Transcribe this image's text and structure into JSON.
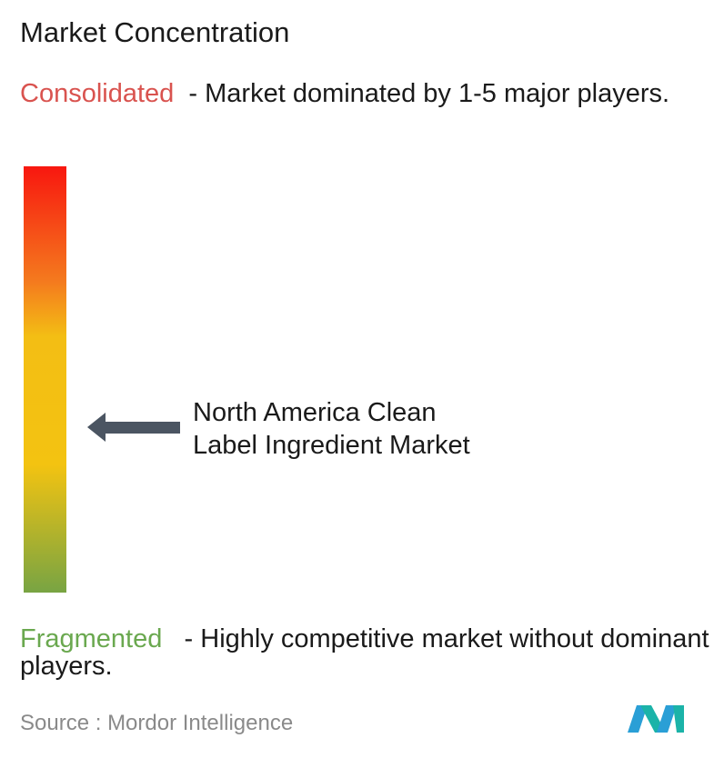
{
  "title": "Market Concentration",
  "top": {
    "label": "Consolidated",
    "description": "- Market dominated by 1-5 major players."
  },
  "marker": {
    "lines": [
      "North America Clean",
      "Label Ingredient Market"
    ]
  },
  "bottom": {
    "label": "Fragmented",
    "description": "- Highly competitive market without dominant players."
  },
  "source": {
    "prefix": "Source :",
    "name": "Mordor Intelligence"
  }
}
